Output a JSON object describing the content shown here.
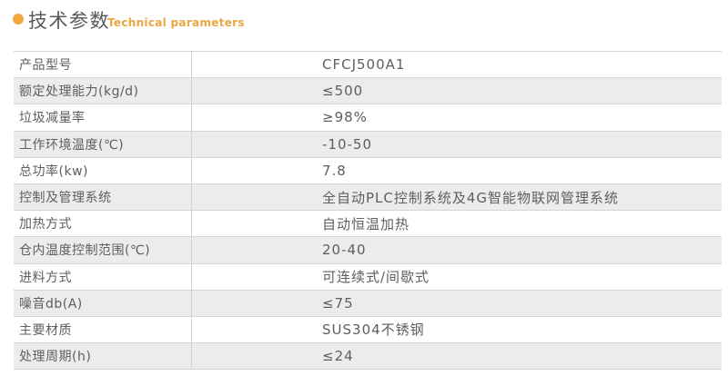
{
  "header": {
    "title_zh": "技术参数",
    "title_en": "Technical parameters",
    "bullet_icon": "orange-dot-icon",
    "accent_color": "#F3A73F",
    "title_color": "#58585A"
  },
  "table": {
    "columns": [
      "parameter",
      "value"
    ],
    "alt_row_bg": "#ECECEC",
    "border_color": "#D5D5D5",
    "text_color": "#5E5E5E",
    "rows": [
      {
        "label": "产品型号",
        "value": "CFCJ500A1"
      },
      {
        "label": "额定处理能力(kg/d)",
        "value": "≤500"
      },
      {
        "label": "垃圾减量率",
        "value": "≥98%"
      },
      {
        "label": "工作环境温度(℃)",
        "value": "-10-50"
      },
      {
        "label": "总功率(kw)",
        "value": "7.8"
      },
      {
        "label": "控制及管理系统",
        "value": "全自动PLC控制系统及4G智能物联网管理系统"
      },
      {
        "label": "加热方式",
        "value": "自动恒温加热"
      },
      {
        "label": "仓内温度控制范围(℃)",
        "value": "20-40"
      },
      {
        "label": "进料方式",
        "value": "可连续式/间歇式"
      },
      {
        "label": "噪音db(A)",
        "value": "≤75"
      },
      {
        "label": "主要材质",
        "value": "SUS304不锈钢"
      },
      {
        "label": "处理周期(h)",
        "value": "≤24"
      }
    ]
  }
}
